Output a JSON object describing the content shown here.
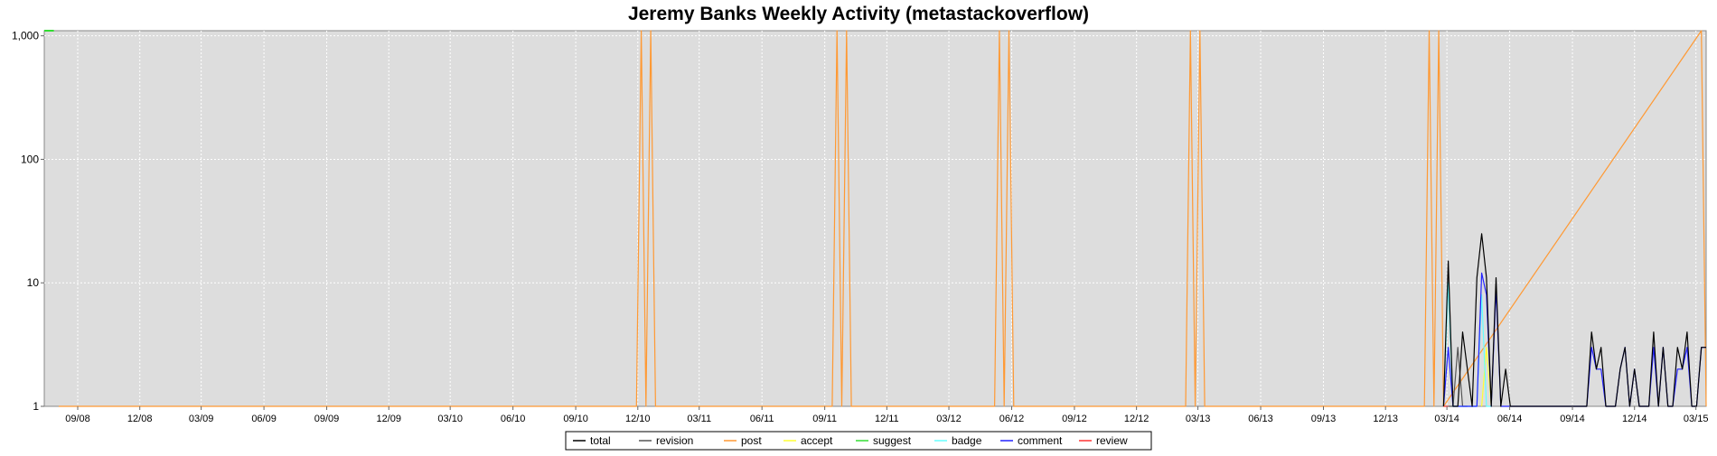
{
  "chart_data": {
    "type": "line",
    "title": "Jeremy Banks Weekly Activity (metastackoverflow)",
    "xlabel": "",
    "ylabel": "",
    "y_scale": "log",
    "ylim": [
      1,
      1100
    ],
    "xlim": [
      "2008-07-14",
      "2015-03-16"
    ],
    "grid": true,
    "legend_position": "bottom-center",
    "x_ticks": [
      "09/08",
      "12/08",
      "03/09",
      "06/09",
      "09/09",
      "12/09",
      "03/10",
      "06/10",
      "09/10",
      "12/10",
      "03/11",
      "06/11",
      "09/11",
      "12/11",
      "03/12",
      "06/12",
      "09/12",
      "12/12",
      "03/13",
      "06/13",
      "09/13",
      "12/13",
      "03/14",
      "06/14",
      "09/14",
      "12/14",
      "03/15"
    ],
    "y_ticks": [
      "1",
      "10",
      "100",
      "1,000"
    ],
    "legend": [
      "total",
      "revision",
      "post",
      "accept",
      "suggest",
      "badge",
      "comment",
      "review"
    ],
    "colors": {
      "total": "#000000",
      "revision": "#555555",
      "post": "#ff9933",
      "accept": "#ffff33",
      "suggest": "#33dd33",
      "badge": "#66ffff",
      "comment": "#2222ff",
      "review": "#ff3333"
    },
    "series": [
      {
        "name": "total",
        "x": [
          "2014-02-24",
          "2014-03-03",
          "2014-03-10",
          "2014-03-17",
          "2014-03-24",
          "2014-03-31",
          "2014-04-07",
          "2014-04-14",
          "2014-04-21",
          "2014-04-28",
          "2014-05-05",
          "2014-05-12",
          "2014-05-19",
          "2014-05-26",
          "2014-06-02",
          "2014-06-09",
          "2014-06-16",
          "2014-09-22",
          "2014-09-29",
          "2014-10-06",
          "2014-10-13",
          "2014-10-20",
          "2014-10-27",
          "2014-11-03",
          "2014-11-10",
          "2014-11-17",
          "2014-11-24",
          "2014-12-01",
          "2014-12-08",
          "2014-12-15",
          "2014-12-22",
          "2014-12-29",
          "2015-01-05",
          "2015-01-12",
          "2015-01-19",
          "2015-01-26",
          "2015-02-02",
          "2015-02-09",
          "2015-02-16",
          "2015-02-23",
          "2015-03-02",
          "2015-03-09",
          "2015-03-16"
        ],
        "y": [
          1,
          15,
          1,
          1,
          4,
          2,
          1,
          11,
          25,
          11,
          1,
          11,
          1,
          2,
          1,
          1,
          1,
          1,
          4,
          2,
          3,
          1,
          1,
          1,
          2,
          3,
          1,
          2,
          1,
          1,
          1,
          4,
          1,
          3,
          1,
          1,
          3,
          2,
          4,
          1,
          1,
          3,
          3
        ]
      },
      {
        "name": "revision",
        "x": [
          "2014-03-03",
          "2014-03-10",
          "2014-03-17",
          "2014-03-24",
          "2014-03-31"
        ],
        "y": [
          1,
          1,
          3,
          1,
          1
        ]
      },
      {
        "name": "post",
        "x": [
          "2008-08-04",
          "2008-08-11",
          "2008-08-18",
          "2010-11-29",
          "2010-12-06",
          "2010-12-13",
          "2010-12-20",
          "2010-12-27",
          "2011-09-12",
          "2011-09-19",
          "2011-09-26",
          "2011-10-03",
          "2011-10-10",
          "2012-05-07",
          "2012-05-14",
          "2012-05-21",
          "2012-05-28",
          "2012-06-04",
          "2013-02-11",
          "2013-02-18",
          "2013-02-25",
          "2013-03-04",
          "2013-03-11",
          "2014-01-27",
          "2014-02-03",
          "2014-02-10",
          "2014-02-17",
          "2014-02-24",
          "2015-03-09",
          "2015-03-16"
        ],
        "y": [
          1,
          1,
          1,
          1,
          1100,
          1,
          1100,
          1,
          1,
          1100,
          1,
          1100,
          1,
          1,
          1100,
          1,
          1100,
          1,
          1,
          1100,
          1,
          1100,
          1,
          1,
          1100,
          1,
          1100,
          1,
          1100,
          1
        ]
      },
      {
        "name": "accept",
        "x": [
          "2014-04-21",
          "2014-04-28",
          "2014-05-05"
        ],
        "y": [
          1,
          3,
          1
        ]
      },
      {
        "name": "suggest",
        "x": [
          "2008-07-14",
          "2008-07-21",
          "2008-07-28"
        ],
        "y": [
          1100,
          1100,
          1100
        ]
      },
      {
        "name": "badge",
        "x": [
          "2014-02-24",
          "2014-03-03",
          "2014-03-10",
          "2014-04-14",
          "2014-04-21",
          "2014-04-28",
          "2014-05-05"
        ],
        "y": [
          1,
          10,
          1,
          1,
          8,
          1,
          1
        ]
      },
      {
        "name": "comment",
        "x": [
          "2014-02-24",
          "2014-03-03",
          "2014-03-10",
          "2014-04-14",
          "2014-04-21",
          "2014-04-28",
          "2014-05-05",
          "2014-05-12",
          "2014-05-19",
          "2014-09-22",
          "2014-09-29",
          "2014-10-06",
          "2014-10-13",
          "2014-10-20",
          "2014-10-27",
          "2014-11-03",
          "2014-11-10",
          "2014-11-17",
          "2014-11-24",
          "2014-12-01",
          "2014-12-08",
          "2014-12-15",
          "2014-12-22",
          "2014-12-29",
          "2015-01-05",
          "2015-01-12",
          "2015-01-19",
          "2015-01-26",
          "2015-02-02",
          "2015-02-09",
          "2015-02-16",
          "2015-02-23",
          "2015-03-02",
          "2015-03-09",
          "2015-03-16"
        ],
        "y": [
          1,
          3,
          1,
          1,
          12,
          8,
          1,
          9,
          1,
          1,
          3,
          2,
          2,
          1,
          1,
          1,
          2,
          3,
          1,
          2,
          1,
          1,
          1,
          3,
          1,
          3,
          1,
          1,
          2,
          2,
          3,
          1,
          1,
          3,
          3
        ]
      },
      {
        "name": "review",
        "x": [
          "2014-02-24",
          "2014-03-03"
        ],
        "y": [
          1,
          1
        ]
      }
    ]
  }
}
